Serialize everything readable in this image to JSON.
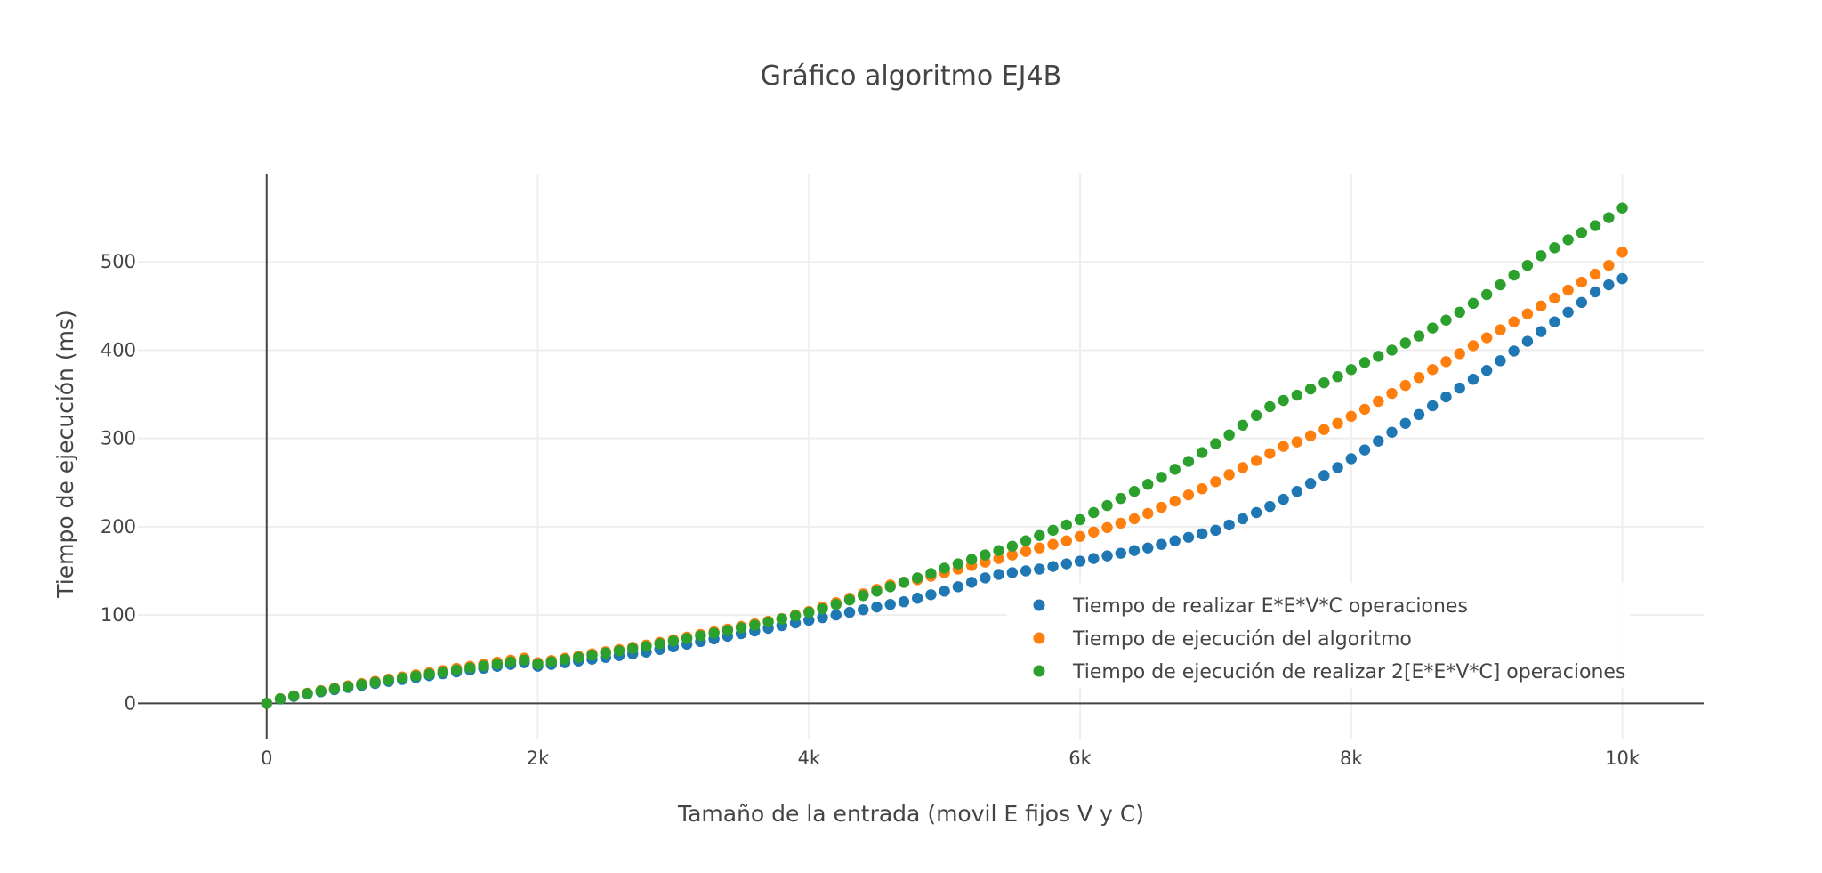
{
  "chart_data": {
    "type": "scatter",
    "title": "Gráfico algoritmo EJ4B",
    "xlabel": "Tamaño de la entrada (movil E fijos V y C)",
    "ylabel": "Tiempo de ejecución (ms)",
    "xlim": [
      -950,
      10600
    ],
    "ylim": [
      -40,
      600
    ],
    "x_ticks": [
      0,
      2000,
      4000,
      6000,
      8000,
      10000
    ],
    "x_tick_labels": [
      "0",
      "2k",
      "4k",
      "6k",
      "8k",
      "10k"
    ],
    "y_ticks": [
      0,
      100,
      200,
      300,
      400,
      500
    ],
    "y_tick_labels": [
      "0",
      "100",
      "200",
      "300",
      "400",
      "500"
    ],
    "grid": true,
    "legend_position": "bottom-right",
    "x": [
      0,
      100,
      200,
      300,
      400,
      500,
      600,
      700,
      800,
      900,
      1000,
      1100,
      1200,
      1300,
      1400,
      1500,
      1600,
      1700,
      1800,
      1900,
      2000,
      2100,
      2200,
      2300,
      2400,
      2500,
      2600,
      2700,
      2800,
      2900,
      3000,
      3100,
      3200,
      3300,
      3400,
      3500,
      3600,
      3700,
      3800,
      3900,
      4000,
      4100,
      4200,
      4300,
      4400,
      4500,
      4600,
      4700,
      4800,
      4900,
      5000,
      5100,
      5200,
      5300,
      5400,
      5500,
      5600,
      5700,
      5800,
      5900,
      6000,
      6100,
      6200,
      6300,
      6400,
      6500,
      6600,
      6700,
      6800,
      6900,
      7000,
      7100,
      7200,
      7300,
      7400,
      7500,
      7600,
      7700,
      7800,
      7900,
      8000,
      8100,
      8200,
      8300,
      8400,
      8500,
      8600,
      8700,
      8800,
      8900,
      9000,
      9100,
      9200,
      9300,
      9400,
      9500,
      9600,
      9700,
      9800,
      9900,
      10000
    ],
    "series": [
      {
        "name": "Tiempo de realizar E*E*V*C operaciones",
        "color": "#1f77b4",
        "values": [
          0,
          4.8,
          7.8,
          10.5,
          13.1,
          15.5,
          17.9,
          20.2,
          22.5,
          24.8,
          27,
          29.2,
          31.3,
          33.5,
          35.6,
          37.7,
          39.8,
          41.9,
          44,
          46,
          42,
          44,
          46,
          48,
          50,
          52,
          54,
          56,
          58,
          61,
          64,
          67,
          70,
          73,
          76,
          79,
          82,
          85,
          88,
          91,
          94,
          97,
          100,
          103,
          106,
          109,
          112,
          115,
          119,
          123,
          127,
          132,
          137,
          142,
          146,
          148,
          150,
          152,
          155,
          158,
          161,
          164,
          167,
          170,
          173,
          176,
          180,
          184,
          188,
          192,
          196,
          202,
          209,
          216,
          223,
          231,
          240,
          249,
          258,
          267,
          277,
          287,
          297,
          307,
          317,
          327,
          337,
          347,
          357,
          367,
          377,
          388,
          399,
          410,
          421,
          432,
          443,
          454,
          466,
          474,
          481
        ]
      },
      {
        "name": "Tiempo de ejecución del algoritmo",
        "color": "#ff7f0e",
        "values": [
          0,
          5.3,
          8.5,
          11.5,
          14.4,
          17.1,
          19.8,
          22.4,
          24.9,
          27.4,
          29.9,
          32.3,
          34.7,
          37.1,
          39.5,
          41.9,
          44.3,
          46.6,
          48.9,
          51.2,
          46,
          48.5,
          51,
          53.5,
          56,
          58.5,
          61,
          63.5,
          66,
          69,
          72,
          75,
          78,
          81,
          84,
          87,
          90,
          93,
          96,
          100,
          104,
          109,
          114,
          119,
          124,
          129,
          134,
          137,
          140,
          144,
          148,
          152,
          156,
          160,
          164,
          168,
          172,
          176,
          180,
          184,
          189,
          194,
          199,
          204,
          209,
          215,
          222,
          229,
          236,
          243,
          251,
          259,
          267,
          275,
          283,
          291,
          296,
          303,
          310,
          317,
          325,
          333,
          342,
          351,
          360,
          369,
          378,
          387,
          396,
          405,
          414,
          423,
          432,
          441,
          450,
          459,
          468,
          477,
          486,
          496,
          511
        ]
      },
      {
        "name": "Tiempo de ejecución de realizar 2[E*E*V*C] operaciones",
        "color": "#2ca02c",
        "values": [
          0,
          5,
          8.2,
          11.1,
          13.8,
          16.4,
          18.9,
          21.4,
          23.8,
          26.2,
          28.6,
          30.9,
          33.2,
          35.5,
          37.8,
          40.1,
          42.3,
          44.6,
          46.8,
          49,
          44.5,
          47,
          49.5,
          52,
          54.5,
          57,
          59.5,
          62,
          64.5,
          67.5,
          70.5,
          73.5,
          76.5,
          79.5,
          82.5,
          85.5,
          88.5,
          92,
          95.5,
          99,
          103,
          107,
          112,
          117,
          122,
          127,
          132,
          137,
          142,
          147,
          153,
          158,
          163,
          168,
          173,
          178,
          184,
          190,
          196,
          202,
          208,
          216,
          224,
          232,
          240,
          248,
          256,
          265,
          274,
          284,
          294,
          304,
          315,
          326,
          336,
          343,
          349,
          356,
          363,
          370,
          378,
          386,
          393,
          400,
          408,
          416,
          425,
          434,
          443,
          453,
          463,
          474,
          485,
          496,
          507,
          516,
          525,
          533,
          541,
          550,
          561
        ]
      }
    ]
  }
}
